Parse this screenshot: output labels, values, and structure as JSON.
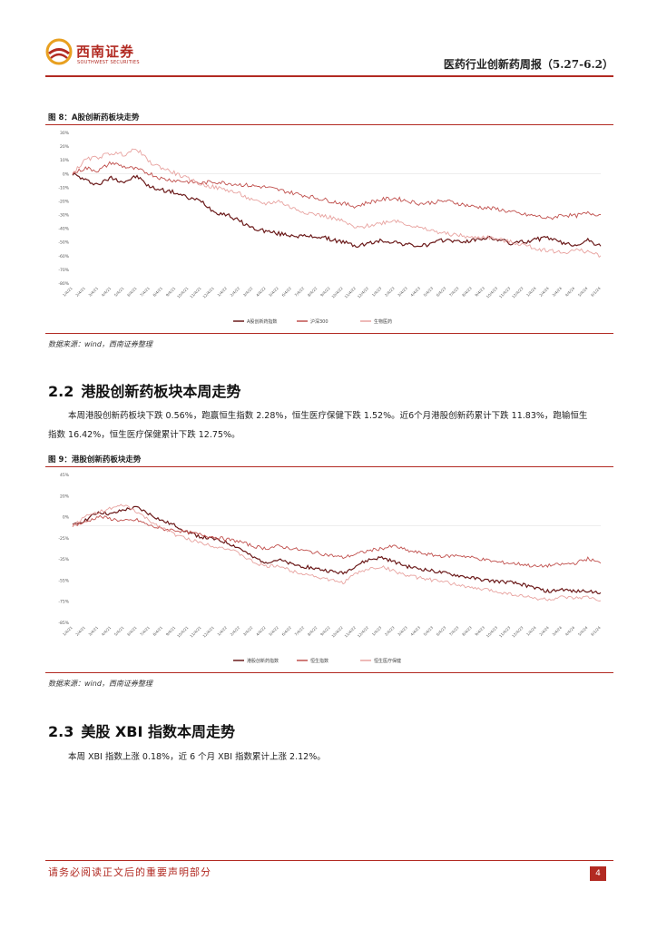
{
  "header": {
    "logo_cn": "西南证券",
    "logo_en": "SOUTHWEST SECURITIES",
    "report_title": "医药行业创新药周报（5.27-6.2）"
  },
  "figure8": {
    "caption": "图 8：A股创新药板块走势",
    "source": "数据来源：wind，西南证券整理"
  },
  "section22": {
    "number": "2.2",
    "title": "港股创新药板块本周走势",
    "paragraph": "本周港股创新药板块下跌 0.56%，跑赢恒生指数 2.28%，恒生医疗保健下跌 1.52%。近6个月港股创新药累计下跌 11.83%，跑输恒生指数 16.42%，恒生医疗保健累计下跌 12.75%。"
  },
  "figure9": {
    "caption": "图 9：港股创新药板块走势",
    "source": "数据来源：wind，西南证券整理"
  },
  "section23": {
    "number": "2.3",
    "title": "美股 XBI 指数本周走势",
    "paragraph": "本周 XBI 指数上涨 0.18%，近 6 个月 XBI 指数累计上涨 2.12%。"
  },
  "footer": {
    "note": "请务必阅读正文后的重要声明部分",
    "page": "4"
  },
  "chart_data": [
    {
      "type": "line",
      "title": "A股创新药板块走势",
      "ylim": [
        -80,
        30
      ],
      "yticks": [
        "30%",
        "20%",
        "10%",
        "0%",
        "-10%",
        "-20%",
        "-30%",
        "-40%",
        "-50%",
        "-60%",
        "-70%",
        "-80%"
      ],
      "categories": [
        "1/4/21",
        "2/4/21",
        "3/4/21",
        "4/4/21",
        "5/4/21",
        "6/4/21",
        "7/4/21",
        "8/4/21",
        "9/4/21",
        "10/4/21",
        "11/4/21",
        "12/4/21",
        "1/4/22",
        "2/4/22",
        "3/4/22",
        "4/4/22",
        "5/4/22",
        "6/4/22",
        "7/4/22",
        "8/4/22",
        "9/4/22",
        "10/4/22",
        "11/4/22",
        "12/4/22",
        "1/4/23",
        "2/4/23",
        "3/4/23",
        "4/4/23",
        "5/4/23",
        "6/4/23",
        "7/4/23",
        "8/4/23",
        "9/4/23",
        "10/4/23",
        "11/4/23",
        "12/4/23",
        "1/4/24",
        "2/4/24",
        "3/4/24",
        "4/4/24",
        "5/4/24",
        "6/1/24"
      ],
      "series": [
        {
          "name": "A股创新药指数",
          "color": "#6b1a1a",
          "values": [
            0,
            -5,
            -8,
            -3,
            -6,
            -2,
            -10,
            -12,
            -14,
            -18,
            -20,
            -28,
            -30,
            -35,
            -40,
            -42,
            -44,
            -45,
            -46,
            -46,
            -48,
            -50,
            -53,
            -51,
            -49,
            -50,
            -52,
            -53,
            -51,
            -48,
            -50,
            -49,
            -47,
            -48,
            -51,
            -50,
            -48,
            -47,
            -51,
            -52,
            -49,
            -53
          ]
        },
        {
          "name": "沪深300",
          "color": "#c0504d",
          "values": [
            0,
            4,
            2,
            8,
            5,
            3,
            0,
            -4,
            -5,
            -6,
            -7,
            -6,
            -7,
            -8,
            -9,
            -10,
            -12,
            -14,
            -16,
            -18,
            -20,
            -22,
            -24,
            -21,
            -19,
            -18,
            -20,
            -22,
            -21,
            -20,
            -22,
            -24,
            -25,
            -26,
            -28,
            -30,
            -31,
            -33,
            -30,
            -31,
            -29,
            -30
          ]
        },
        {
          "name": "生物医药",
          "color": "#e8a3a0",
          "values": [
            0,
            10,
            12,
            15,
            14,
            18,
            8,
            4,
            0,
            -4,
            -8,
            -10,
            -12,
            -15,
            -20,
            -22,
            -20,
            -25,
            -28,
            -30,
            -32,
            -35,
            -40,
            -38,
            -36,
            -34,
            -37,
            -40,
            -42,
            -44,
            -45,
            -47,
            -46,
            -48,
            -50,
            -52,
            -55,
            -56,
            -58,
            -56,
            -57,
            -60
          ]
        }
      ]
    },
    {
      "type": "line",
      "title": "港股创新药板块走势",
      "ylim": [
        -85,
        45
      ],
      "yticks": [
        "45%",
        "20%",
        "0%",
        "-25%",
        "-35%",
        "-55%",
        "-75%",
        "-85%"
      ],
      "categories": [
        "1/4/21",
        "2/4/21",
        "3/4/21",
        "4/4/21",
        "5/4/21",
        "6/4/21",
        "7/4/21",
        "8/4/21",
        "9/4/21",
        "10/4/21",
        "11/4/21",
        "12/4/21",
        "1/4/22",
        "2/4/22",
        "3/4/22",
        "4/4/22",
        "5/4/22",
        "6/4/22",
        "7/4/22",
        "8/4/22",
        "9/4/22",
        "10/4/22",
        "11/4/22",
        "12/4/22",
        "1/4/23",
        "2/4/23",
        "3/4/23",
        "4/4/23",
        "5/4/23",
        "6/4/23",
        "7/4/23",
        "8/4/23",
        "9/4/23",
        "10/4/23",
        "11/4/23",
        "12/4/23",
        "1/4/24",
        "2/4/24",
        "3/4/24",
        "4/4/24",
        "5/4/24",
        "6/1/24"
      ],
      "series": [
        {
          "name": "港股创新药指数",
          "color": "#6b1a1a",
          "values": [
            0,
            5,
            12,
            10,
            14,
            16,
            10,
            4,
            0,
            -6,
            -10,
            -12,
            -15,
            -20,
            -28,
            -32,
            -30,
            -34,
            -36,
            -38,
            -40,
            -42,
            -35,
            -30,
            -28,
            -32,
            -36,
            -38,
            -40,
            -42,
            -44,
            -46,
            -48,
            -49,
            -50,
            -52,
            -55,
            -58,
            -56,
            -58,
            -57,
            -59
          ]
        },
        {
          "name": "恒生指数",
          "color": "#c0504d",
          "values": [
            0,
            3,
            8,
            6,
            4,
            5,
            0,
            -3,
            -4,
            -6,
            -8,
            -10,
            -12,
            -14,
            -18,
            -20,
            -18,
            -20,
            -22,
            -24,
            -26,
            -28,
            -25,
            -22,
            -20,
            -18,
            -22,
            -24,
            -26,
            -27,
            -26,
            -28,
            -30,
            -32,
            -33,
            -34,
            -36,
            -35,
            -34,
            -33,
            -29,
            -33
          ]
        },
        {
          "name": "恒生医疗保健",
          "color": "#e8a3a0",
          "values": [
            0,
            8,
            12,
            15,
            18,
            12,
            4,
            -2,
            -8,
            -12,
            -15,
            -18,
            -20,
            -25,
            -32,
            -36,
            -35,
            -40,
            -42,
            -45,
            -48,
            -50,
            -42,
            -38,
            -36,
            -40,
            -44,
            -46,
            -48,
            -50,
            -52,
            -55,
            -56,
            -58,
            -60,
            -62,
            -64,
            -65,
            -63,
            -64,
            -63,
            -66
          ]
        }
      ]
    }
  ]
}
